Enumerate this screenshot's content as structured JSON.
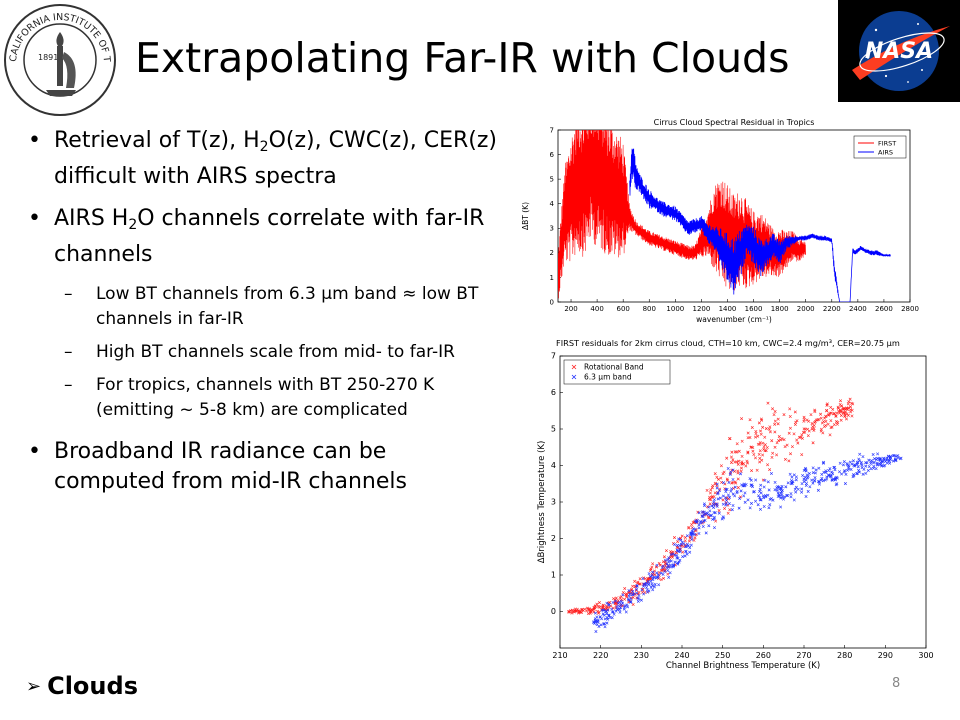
{
  "slide": {
    "title": "Extrapolating Far-IR with Clouds",
    "footer": "Clouds",
    "page_number": "8",
    "logos": {
      "caltech_text": "CALIFORNIA INSTITUTE OF TECHNOLOGY",
      "caltech_year": "1891",
      "nasa_text": "NASA"
    },
    "bullets": [
      {
        "parts": [
          "Retrieval of T(z), H",
          "2",
          "O(z), CWC(z), CER(z) difficult with AIRS spectra"
        ]
      },
      {
        "parts": [
          "AIRS H",
          "2",
          "O channels correlate with far-IR channels"
        ],
        "subs": [
          "Low BT channels from 6.3 µm band ≈ low BT channels in far-IR",
          "High BT channels scale from mid- to far-IR",
          "For tropics, channels with BT 250-270 K (emitting ~ 5-8 km) are complicated"
        ]
      },
      {
        "parts": [
          "Broadband IR radiance can be computed from mid-IR channels"
        ]
      }
    ],
    "colors": {
      "first": "#ff0000",
      "airs": "#0000ff",
      "rot": "#ff2020",
      "band63": "#2030ff"
    }
  },
  "chart_data": [
    {
      "type": "line",
      "title": "Cirrus Cloud Spectral Residual in Tropics",
      "xlabel": "wavenumber (cm⁻¹)",
      "ylabel": "ΔBT (K)",
      "xlim": [
        100,
        2800
      ],
      "ylim": [
        0,
        7
      ],
      "xticks": [
        200,
        400,
        600,
        800,
        1000,
        1200,
        1400,
        1600,
        1800,
        2000,
        2200,
        2400,
        2600,
        2800
      ],
      "yticks": [
        0,
        1,
        2,
        3,
        4,
        5,
        6,
        7
      ],
      "legend": "top-right",
      "series": [
        {
          "name": "FIRST",
          "color": "#ff0000",
          "x": [
            100,
            150,
            200,
            250,
            300,
            350,
            400,
            450,
            500,
            550,
            600,
            650,
            700,
            750,
            800,
            850,
            900,
            950,
            1000,
            1050,
            1100,
            1150,
            1200,
            1250,
            1300,
            1350,
            1400,
            1450,
            1500,
            1550,
            1600,
            1650,
            1700,
            1750,
            1800,
            1850,
            1900,
            1950,
            2000
          ],
          "y": [
            1.0,
            3.5,
            4.2,
            5.0,
            4.8,
            5.5,
            5.2,
            5.0,
            4.6,
            4.4,
            4.2,
            3.4,
            3.0,
            2.8,
            2.6,
            2.5,
            2.4,
            2.3,
            2.2,
            2.1,
            2.0,
            2.0,
            2.4,
            2.8,
            3.0,
            3.0,
            2.6,
            2.4,
            2.6,
            2.3,
            2.2,
            2.3,
            2.2,
            2.0,
            2.0,
            2.1,
            2.3,
            2.1,
            2.2
          ],
          "spread": [
            1.0,
            2.0,
            2.6,
            3.0,
            3.0,
            3.0,
            3.0,
            3.0,
            2.8,
            2.6,
            2.4,
            0.5,
            0.3,
            0.3,
            0.3,
            0.3,
            0.3,
            0.3,
            0.3,
            0.3,
            0.3,
            0.3,
            0.6,
            1.0,
            1.8,
            2.2,
            2.2,
            2.0,
            2.0,
            1.8,
            1.5,
            1.4,
            1.2,
            1.0,
            1.0,
            0.8,
            0.6,
            0.5,
            0.3
          ]
        },
        {
          "name": "AIRS",
          "color": "#0000ff",
          "x": [
            650,
            670,
            700,
            720,
            750,
            800,
            850,
            900,
            950,
            1000,
            1050,
            1100,
            1150,
            1200,
            1250,
            1300,
            1350,
            1400,
            1450,
            1500,
            1550,
            1600,
            1650,
            1700,
            1750,
            1800,
            1850,
            1900,
            1950,
            2000,
            2050,
            2100,
            2150,
            2200,
            2220,
            2260,
            2300,
            2340,
            2360,
            2380,
            2400,
            2420,
            2450,
            2500,
            2550,
            2600,
            2650
          ],
          "y": [
            4.5,
            5.8,
            5.1,
            4.9,
            4.6,
            4.2,
            4.0,
            3.8,
            3.7,
            3.6,
            3.3,
            3.0,
            3.1,
            3.2,
            2.8,
            2.6,
            2.2,
            1.8,
            1.4,
            2.0,
            2.6,
            2.3,
            1.8,
            2.0,
            2.3,
            2.0,
            2.4,
            2.5,
            2.6,
            2.6,
            2.7,
            2.6,
            2.6,
            2.5,
            1.3,
            0.0,
            0.0,
            0.0,
            2.1,
            2.0,
            2.1,
            2.2,
            2.1,
            2.0,
            2.0,
            1.9,
            1.9
          ],
          "spread": [
            0.5,
            0.8,
            0.6,
            0.4,
            0.4,
            0.4,
            0.3,
            0.3,
            0.3,
            0.3,
            0.3,
            0.3,
            0.3,
            0.3,
            0.4,
            0.5,
            0.8,
            1.0,
            1.2,
            1.0,
            0.6,
            0.8,
            0.8,
            0.6,
            0.5,
            0.5,
            0.3,
            0.2,
            0.1,
            0.1,
            0.1,
            0.1,
            0.1,
            0.1,
            0.3,
            0.0,
            0.0,
            0.0,
            0.1,
            0.1,
            0.1,
            0.1,
            0.1,
            0.1,
            0.1,
            0.05,
            0.05
          ]
        }
      ]
    },
    {
      "type": "scatter",
      "title": "FIRST residuals for 2km cirrus cloud, CTH=10 km, CWC=2.4 mg/m³, CER=20.75 μm",
      "xlabel": "Channel Brightness Temperature (K)",
      "ylabel": "ΔBrightness Temperature (K)",
      "xlim": [
        210,
        300
      ],
      "ylim": [
        -1,
        7
      ],
      "xticks": [
        210,
        220,
        230,
        240,
        250,
        260,
        270,
        280,
        290,
        300
      ],
      "yticks": [
        0,
        1,
        2,
        3,
        4,
        5,
        6,
        7
      ],
      "legend": "top-left",
      "series": [
        {
          "name": "Rotational Band",
          "color": "#ff2020",
          "marker": "x",
          "x": [
            212,
            215,
            218,
            220,
            222,
            224,
            226,
            228,
            230,
            232,
            234,
            236,
            238,
            240,
            242,
            244,
            246,
            248,
            250,
            252,
            254,
            256,
            258,
            260,
            262,
            264,
            266,
            268,
            270,
            272,
            274,
            276,
            278,
            280,
            282
          ],
          "y": [
            0.0,
            0.0,
            0.05,
            0.1,
            0.15,
            0.25,
            0.35,
            0.5,
            0.7,
            0.9,
            1.1,
            1.3,
            1.6,
            1.85,
            2.15,
            2.45,
            2.8,
            3.15,
            3.5,
            3.8,
            4.1,
            4.35,
            4.55,
            4.65,
            4.7,
            4.75,
            4.8,
            4.9,
            5.0,
            5.1,
            5.2,
            5.3,
            5.4,
            5.5,
            5.6
          ],
          "spread": [
            0.05,
            0.05,
            0.08,
            0.1,
            0.12,
            0.15,
            0.2,
            0.2,
            0.25,
            0.25,
            0.25,
            0.25,
            0.3,
            0.3,
            0.35,
            0.35,
            0.4,
            0.5,
            0.6,
            0.7,
            0.7,
            0.7,
            0.7,
            0.6,
            0.6,
            0.55,
            0.5,
            0.45,
            0.4,
            0.35,
            0.3,
            0.3,
            0.25,
            0.2,
            0.2
          ]
        },
        {
          "name": "6.3 μm band",
          "color": "#2030ff",
          "marker": "x",
          "x": [
            218,
            220,
            222,
            224,
            226,
            228,
            230,
            232,
            234,
            236,
            238,
            240,
            242,
            244,
            246,
            248,
            250,
            252,
            254,
            256,
            258,
            260,
            262,
            264,
            266,
            268,
            270,
            272,
            274,
            276,
            278,
            280,
            282,
            284,
            286,
            288,
            290,
            292,
            294
          ],
          "y": [
            -0.3,
            -0.2,
            -0.1,
            0.1,
            0.25,
            0.4,
            0.6,
            0.8,
            1.0,
            1.2,
            1.45,
            1.7,
            2.0,
            2.3,
            2.6,
            2.85,
            3.1,
            3.25,
            3.3,
            3.25,
            3.2,
            3.2,
            3.3,
            3.35,
            3.4,
            3.45,
            3.5,
            3.6,
            3.65,
            3.7,
            3.8,
            3.9,
            3.95,
            4.0,
            4.05,
            4.1,
            4.15,
            4.2,
            4.2
          ],
          "spread": [
            0.2,
            0.2,
            0.2,
            0.2,
            0.2,
            0.2,
            0.2,
            0.25,
            0.25,
            0.25,
            0.25,
            0.25,
            0.3,
            0.3,
            0.35,
            0.4,
            0.6,
            0.6,
            0.5,
            0.4,
            0.35,
            0.3,
            0.3,
            0.3,
            0.3,
            0.3,
            0.3,
            0.3,
            0.3,
            0.3,
            0.25,
            0.25,
            0.2,
            0.2,
            0.2,
            0.15,
            0.15,
            0.1,
            0.1
          ]
        }
      ]
    }
  ]
}
